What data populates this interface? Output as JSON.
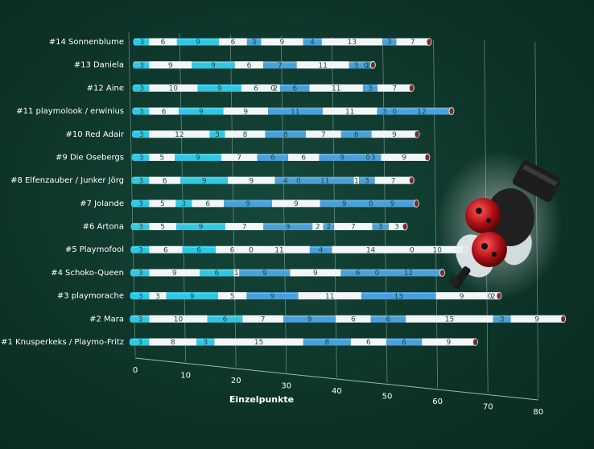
{
  "chart_data": {
    "type": "bar",
    "orientation": "horizontal",
    "stacked": true,
    "xlabel": "Einzelpunkte",
    "ylabel": "",
    "title": "",
    "xlim": [
      0,
      80
    ],
    "x_ticks": [
      0,
      10,
      20,
      30,
      40,
      50,
      60,
      70,
      80
    ],
    "grid": true,
    "legend": "none",
    "colors": {
      "cyan": "#31c7e4",
      "blue": "#4aa0d8",
      "white": "#f2f6f8",
      "text": "#1d4a44",
      "grid": "#9fb8b0"
    },
    "segment_color_cycle": [
      "cyan",
      "white",
      "cyan",
      "white",
      "blue",
      "white",
      "blue",
      "white",
      "blue",
      "white",
      "blue",
      "white",
      "blue",
      "white",
      "blue",
      "white"
    ],
    "categories": [
      "#14 Sonnenblume",
      "#13 Daniela",
      "#12 Aine",
      "#11 playmolook / erwinius",
      "#10 Red Adair",
      "#9 Die Osebergs",
      "#8 Elfenzauber / Junker Jörg",
      "#7 Jolande",
      "#6 Artona",
      "#5 Playmofool",
      "#4 Schoko-Queen",
      "#3 playmorache",
      "#2 Mara",
      "#1 Knusperkeks / Playmo-Fritz"
    ],
    "rows": [
      [
        3,
        6,
        9,
        6,
        3,
        9,
        4,
        13,
        3,
        7
      ],
      [
        3,
        9,
        9,
        6,
        7,
        11,
        3,
        0,
        2
      ],
      [
        3,
        10,
        9,
        6,
        0,
        2,
        6,
        11,
        3,
        7
      ],
      [
        3,
        6,
        9,
        9,
        11,
        11,
        3,
        0,
        12
      ],
      [
        3,
        12,
        3,
        8,
        8,
        7,
        6,
        9,
        0
      ],
      [
        3,
        5,
        9,
        7,
        6,
        6,
        9,
        0,
        3,
        9
      ],
      [
        3,
        6,
        9,
        9,
        4,
        0,
        11,
        1,
        3,
        7
      ],
      [
        3,
        5,
        3,
        6,
        9,
        9,
        9,
        0,
        9
      ],
      [
        3,
        5,
        9,
        7,
        9,
        2,
        2,
        7,
        3,
        3
      ],
      [
        3,
        6,
        6,
        6,
        0,
        11,
        4,
        14,
        0,
        10
      ],
      [
        3,
        9,
        6,
        1,
        9,
        9,
        6,
        0,
        12
      ],
      [
        3,
        3,
        9,
        5,
        9,
        11,
        13,
        9,
        0,
        2
      ],
      [
        3,
        10,
        6,
        7,
        9,
        6,
        6,
        15,
        3,
        9
      ],
      [
        3,
        8,
        3,
        15,
        8,
        6,
        6,
        9,
        0
      ]
    ]
  },
  "decoration": {
    "image": "ladybug-figure-icon"
  }
}
